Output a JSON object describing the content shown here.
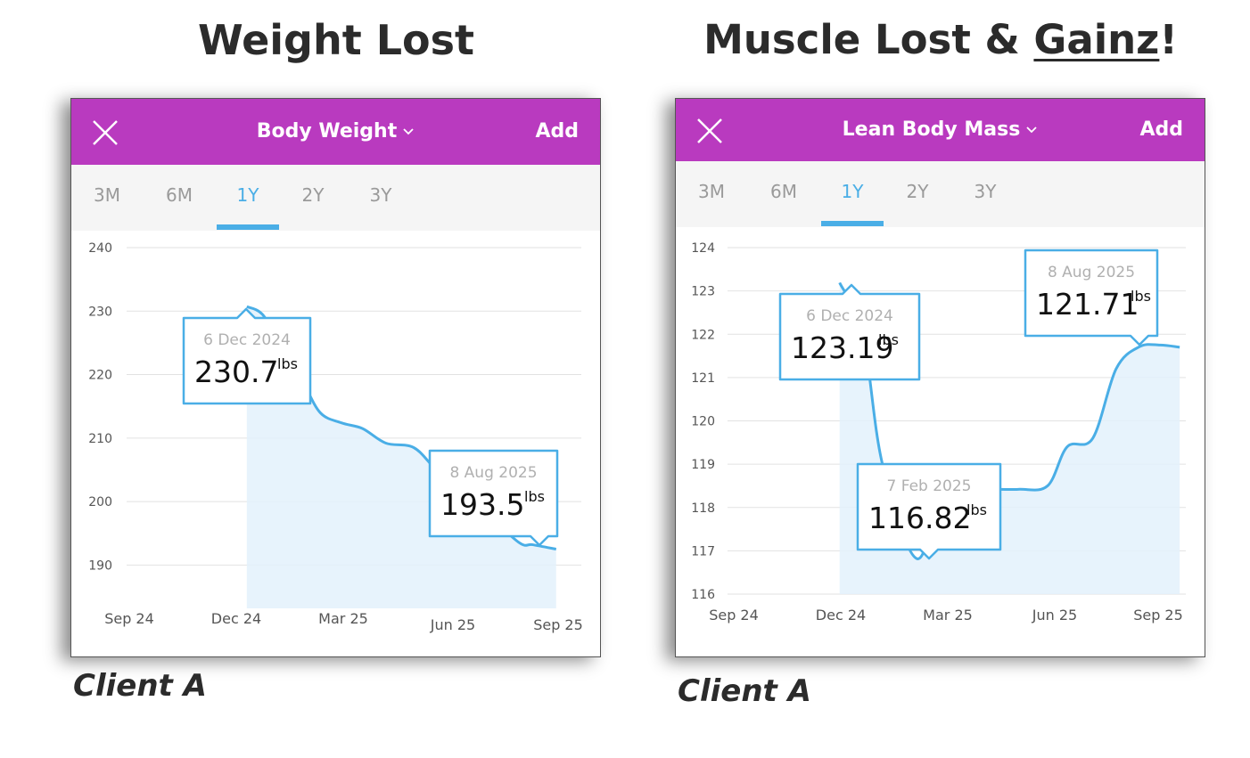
{
  "headings": {
    "left": "Weight Lost",
    "right_prefix": "Muscle Lost & ",
    "right_underlined": "Gainz",
    "right_suffix": "!"
  },
  "captions": {
    "left": "Client A",
    "right": "Client A"
  },
  "colors": {
    "appbar": "#b93abf",
    "accent": "#4aaee6",
    "fill": "#e3f1fb"
  },
  "icons": {
    "close": "close-icon",
    "dropdown": "chevron-down-icon"
  },
  "panels": [
    {
      "title": "Body Weight",
      "add_label": "Add",
      "tabs": [
        "3M",
        "6M",
        "1Y",
        "2Y",
        "3Y"
      ],
      "active_tab": "1Y"
    },
    {
      "title": "Lean Body Mass",
      "add_label": "Add",
      "tabs": [
        "3M",
        "6M",
        "1Y",
        "2Y",
        "3Y"
      ],
      "active_tab": "1Y"
    }
  ],
  "chart_data": [
    {
      "type": "area",
      "title": "Body Weight",
      "unit": "lbs",
      "x_ticks": [
        "Sep 24",
        "Dec 24",
        "Mar 25",
        "Jun 25",
        "Sep 25"
      ],
      "y_ticks": [
        190,
        200,
        210,
        220,
        230,
        240
      ],
      "ylim": [
        185,
        240
      ],
      "grid": true,
      "series": [
        {
          "x": [
            "2024-12-06",
            "2024-12-20",
            "2025-01-05",
            "2025-01-25",
            "2025-02-10",
            "2025-03-01",
            "2025-03-20",
            "2025-04-10",
            "2025-05-05",
            "2025-05-25",
            "2025-06-15",
            "2025-07-10",
            "2025-08-08",
            "2025-08-20",
            "2025-09-10"
          ],
          "values": [
            230.7,
            229.5,
            225.0,
            219.0,
            214.0,
            212.4,
            211.5,
            209.2,
            208.5,
            205.0,
            201.5,
            198.0,
            193.5,
            193.2,
            192.5
          ]
        }
      ],
      "annotations": [
        {
          "date_label": "6 Dec 2024",
          "value": "230.7",
          "unit": "lbs"
        },
        {
          "date_label": "8 Aug 2025",
          "value": "193.5",
          "unit": "lbs"
        }
      ]
    },
    {
      "type": "area",
      "title": "Lean Body Mass",
      "unit": "lbs",
      "x_ticks": [
        "Sep 24",
        "Dec 24",
        "Mar 25",
        "Jun 25",
        "Sep 25"
      ],
      "y_ticks": [
        116,
        117,
        118,
        119,
        120,
        121,
        122,
        123,
        124
      ],
      "ylim": [
        116,
        124
      ],
      "grid": true,
      "series": [
        {
          "x": [
            "2024-12-06",
            "2024-12-25",
            "2025-01-10",
            "2025-02-07",
            "2025-03-01",
            "2025-04-01",
            "2025-05-01",
            "2025-05-25",
            "2025-06-10",
            "2025-07-01",
            "2025-07-20",
            "2025-08-08",
            "2025-08-25",
            "2025-09-10"
          ],
          "values": [
            123.19,
            122.0,
            119.0,
            116.82,
            118.35,
            118.42,
            118.42,
            118.5,
            119.4,
            119.6,
            121.2,
            121.71,
            121.75,
            121.7
          ]
        }
      ],
      "annotations": [
        {
          "date_label": "6 Dec 2024",
          "value": "123.19",
          "unit": "lbs"
        },
        {
          "date_label": "7 Feb 2025",
          "value": "116.82",
          "unit": "lbs"
        },
        {
          "date_label": "8 Aug 2025",
          "value": "121.71",
          "unit": "lbs"
        }
      ]
    }
  ]
}
